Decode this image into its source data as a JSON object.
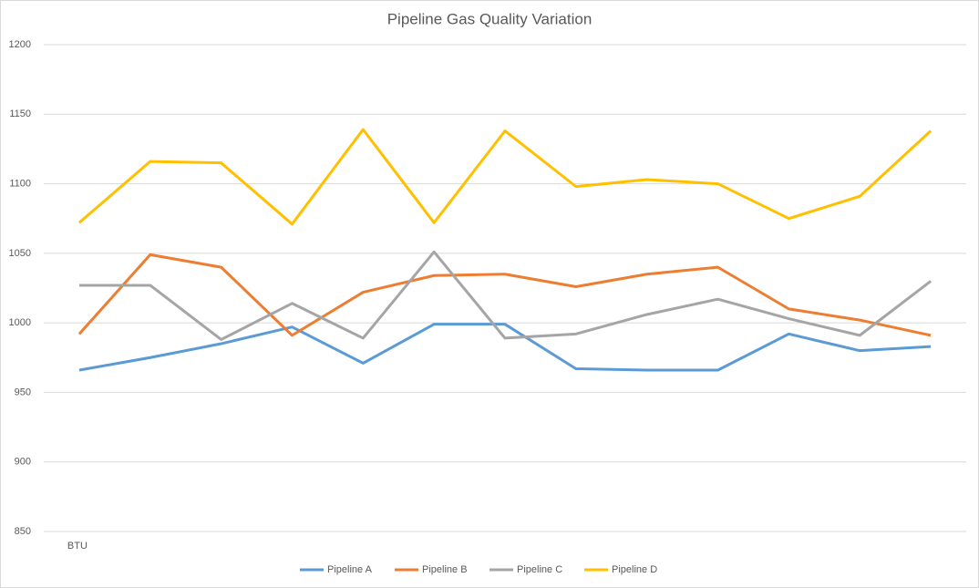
{
  "chart_data": {
    "type": "line",
    "title": "Pipeline Gas Quality Variation",
    "categories": [
      "BTU",
      null,
      null,
      null,
      null,
      null,
      null,
      null,
      null,
      null,
      null,
      null,
      null
    ],
    "series": [
      {
        "name": "Pipeline A",
        "color": "#5b9bd5",
        "values": [
          966,
          975,
          985,
          997,
          971,
          999,
          999,
          967,
          966,
          966,
          992,
          980,
          983
        ]
      },
      {
        "name": "Pipeline B",
        "color": "#ed7d31",
        "values": [
          992,
          1049,
          1040,
          991,
          1022,
          1034,
          1035,
          1026,
          1035,
          1040,
          1010,
          1002,
          991
        ]
      },
      {
        "name": "Pipeline C",
        "color": "#a5a5a5",
        "values": [
          1027,
          1027,
          988,
          1014,
          989,
          1051,
          989,
          992,
          1006,
          1017,
          1003,
          991,
          1030
        ]
      },
      {
        "name": "Pipeline D",
        "color": "#ffc000",
        "values": [
          1072,
          1116,
          1115,
          1071,
          1139,
          1072,
          1138,
          1098,
          1103,
          1100,
          1075,
          1091,
          1138
        ]
      }
    ],
    "ylim": [
      850,
      1200
    ],
    "yticks": [
      850,
      900,
      950,
      1000,
      1050,
      1100,
      1150,
      1200
    ],
    "grid": true,
    "legend": "bottom"
  }
}
